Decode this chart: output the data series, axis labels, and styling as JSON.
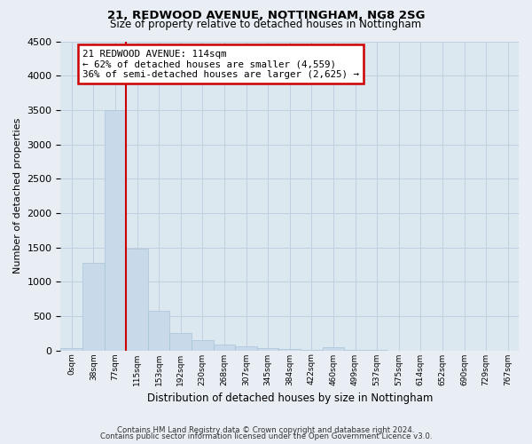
{
  "title1": "21, REDWOOD AVENUE, NOTTINGHAM, NG8 2SG",
  "title2": "Size of property relative to detached houses in Nottingham",
  "xlabel": "Distribution of detached houses by size in Nottingham",
  "ylabel": "Number of detached properties",
  "bar_labels": [
    "0sqm",
    "38sqm",
    "77sqm",
    "115sqm",
    "153sqm",
    "192sqm",
    "230sqm",
    "268sqm",
    "307sqm",
    "345sqm",
    "384sqm",
    "422sqm",
    "460sqm",
    "499sqm",
    "537sqm",
    "575sqm",
    "614sqm",
    "652sqm",
    "690sqm",
    "729sqm",
    "767sqm"
  ],
  "bar_values": [
    30,
    1280,
    3500,
    1480,
    580,
    255,
    145,
    90,
    60,
    30,
    25,
    10,
    50,
    10,
    5,
    0,
    0,
    0,
    0,
    0,
    0
  ],
  "bar_color": "#c8daea",
  "bar_edge_color": "#a8c4d8",
  "ylim": [
    0,
    4500
  ],
  "yticks": [
    0,
    500,
    1000,
    1500,
    2000,
    2500,
    3000,
    3500,
    4000,
    4500
  ],
  "vline_pos": 2.5,
  "annotation_title": "21 REDWOOD AVENUE: 114sqm",
  "annotation_line1": "← 62% of detached houses are smaller (4,559)",
  "annotation_line2": "36% of semi-detached houses are larger (2,625) →",
  "annotation_box_color": "#ffffff",
  "annotation_box_edge": "#cc0000",
  "vline_color": "#cc0000",
  "footer1": "Contains HM Land Registry data © Crown copyright and database right 2024.",
  "footer2": "Contains public sector information licensed under the Open Government Licence v3.0.",
  "bg_color": "#e8eef4",
  "plot_bg": "#dce8f0",
  "grid_color": "#c0d0e0"
}
